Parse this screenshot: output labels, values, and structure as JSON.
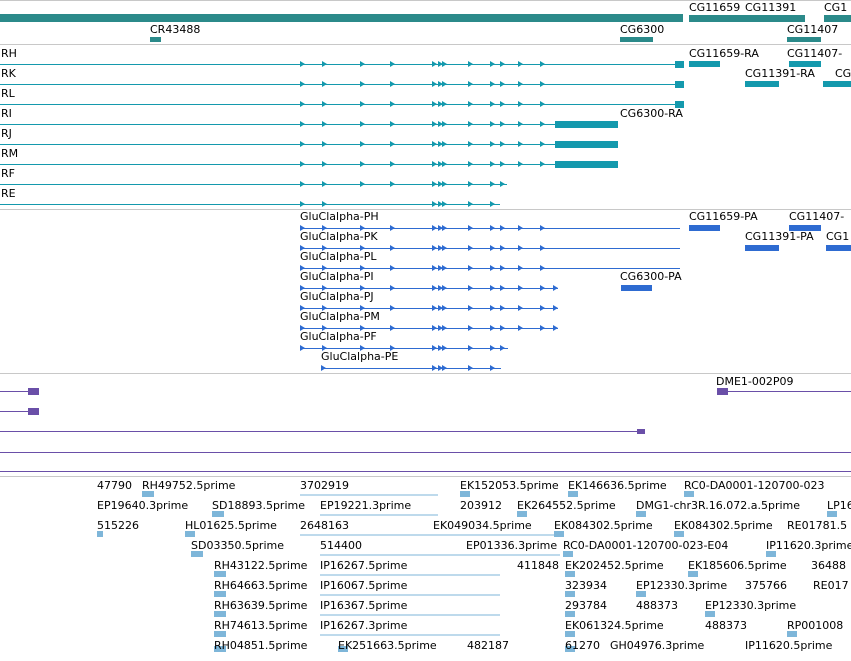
{
  "colors": {
    "gene_teal": "#2b8a8a",
    "transcript_cyan": "#1499ad",
    "cds_blue": "#2e6bd1",
    "other_purple": "#6a4fa8",
    "est_light": "#7eb6d9",
    "separator": "#c8c8c8"
  },
  "gene_track": {
    "labels": [
      "CG11659",
      "CG11391",
      "CG1",
      "CR43488",
      "CG6300",
      "CG11407"
    ]
  },
  "transcript_track": {
    "row_labels": [
      "RH",
      "RK",
      "RL",
      "RI",
      "RJ",
      "RM",
      "RF",
      "RE"
    ],
    "labels": [
      "CG11659-RA",
      "CG11407-",
      "CG11391-RA",
      "CG6300-RA",
      "CG"
    ]
  },
  "cds_track": {
    "row_labels": [
      "GluClalpha-PH",
      "GluClalpha-PK",
      "GluClalpha-PL",
      "GluClalpha-PI",
      "GluClalpha-PJ",
      "GluClalpha-PM",
      "GluClalpha-PF",
      "GluClalpha-PE"
    ],
    "labels": [
      "CG11659-PA",
      "CG11407-",
      "CG11391-PA",
      "CG1",
      "CG6300-PA"
    ]
  },
  "purple_track": {
    "labels": [
      "DME1-002P09"
    ]
  },
  "est_track": {
    "labels": [
      "47790",
      "RH49752.5prime",
      "3702919",
      "EK152053.5prime",
      "EK146636.5prime",
      "RC0-DA0001-120700-023",
      "EP19640.3prime",
      "SD18893.5prime",
      "EP19221.3prime",
      "203912",
      "EK264552.5prime",
      "DMG1-chr3R.16.072.a.5prime",
      "LP16",
      "515226",
      "HL01625.5prime",
      "2648163",
      "EK049034.5prime",
      "EK084302.5prime",
      "EK084302.5prime",
      "RE01781.5",
      "SD03350.5prime",
      "514400",
      "EP01336.3prime",
      "RC0-DA0001-120700-023-E04",
      "IP11620.3prime",
      "RH43122.5prime",
      "IP16267.5prime",
      "411848",
      "EK202452.5prime",
      "EK185606.5prime",
      "36488",
      "RH64663.5prime",
      "IP16067.5prime",
      "323934",
      "EP12330.3prime",
      "375766",
      "RE017",
      "RH63639.5prime",
      "IP16367.5prime",
      "293784",
      "488373",
      "EP12330.3prime",
      "RH74613.5prime",
      "IP16267.3prime",
      "EK061324.5prime",
      "488373",
      "RP001008",
      "RH04851.5prime",
      "EK251663.5prime",
      "482187",
      "61270",
      "GH04976.3prime",
      "IP11620.5prime"
    ]
  }
}
